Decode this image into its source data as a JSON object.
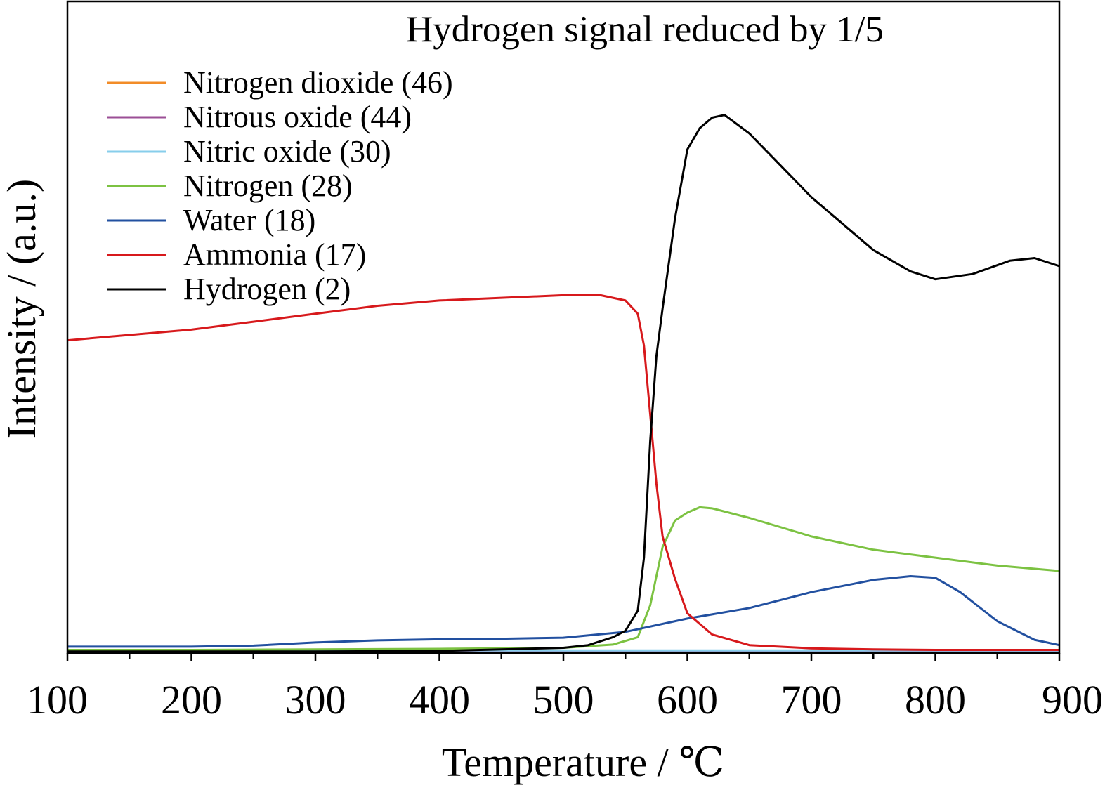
{
  "chart_data": {
    "type": "line",
    "title": "Hydrogen signal reduced by 1/5",
    "xlabel": "Temperature / ℃",
    "ylabel": "Intensity / (a.u.)",
    "xlim": [
      100,
      900
    ],
    "ylim": [
      0,
      100
    ],
    "x_ticks": [
      100,
      200,
      300,
      400,
      500,
      600,
      700,
      800,
      900
    ],
    "x_tick_labels": [
      "100",
      "200",
      "300",
      "400",
      "500",
      "600",
      "700",
      "800",
      "900"
    ],
    "y_ticks_shown": false,
    "grid": false,
    "legend_position": "top-left",
    "series": [
      {
        "name": "Nitrogen dioxide (46)",
        "color": "#f28c28",
        "x": [
          100,
          200,
          300,
          400,
          500,
          600,
          700,
          800,
          900
        ],
        "y": [
          0.3,
          0.3,
          0.3,
          0.3,
          0.3,
          0.3,
          0.3,
          0.3,
          0.3
        ]
      },
      {
        "name": "Nitrous oxide (44)",
        "color": "#9b4f96",
        "x": [
          100,
          200,
          300,
          400,
          500,
          600,
          700,
          800,
          900
        ],
        "y": [
          0.4,
          0.4,
          0.4,
          0.4,
          0.4,
          0.4,
          0.4,
          0.4,
          0.4
        ]
      },
      {
        "name": "Nitric oxide (30)",
        "color": "#87ceeb",
        "x": [
          100,
          200,
          300,
          400,
          500,
          600,
          700,
          800,
          900
        ],
        "y": [
          0.5,
          0.5,
          0.5,
          0.5,
          0.5,
          0.5,
          0.5,
          0.5,
          0.5
        ]
      },
      {
        "name": "Nitrogen (28)",
        "color": "#7cc242",
        "x": [
          100,
          200,
          300,
          400,
          500,
          540,
          560,
          570,
          580,
          590,
          600,
          610,
          620,
          650,
          700,
          750,
          800,
          850,
          900
        ],
        "y": [
          0.6,
          0.6,
          0.7,
          0.8,
          1.0,
          1.6,
          3.0,
          9.0,
          20.0,
          25.0,
          26.5,
          27.5,
          27.3,
          25.5,
          22.0,
          19.5,
          18.0,
          16.5,
          15.5
        ]
      },
      {
        "name": "Water (18)",
        "color": "#2250a0",
        "x": [
          100,
          200,
          250,
          300,
          350,
          400,
          450,
          500,
          550,
          600,
          650,
          700,
          750,
          780,
          800,
          820,
          850,
          880,
          900
        ],
        "y": [
          1.2,
          1.2,
          1.4,
          2.0,
          2.4,
          2.6,
          2.7,
          2.9,
          4.0,
          6.5,
          8.5,
          11.5,
          13.8,
          14.5,
          14.2,
          11.5,
          6.0,
          2.5,
          1.5
        ]
      },
      {
        "name": "Ammonia (17)",
        "color": "#d7191c",
        "x": [
          100,
          150,
          200,
          250,
          300,
          350,
          400,
          450,
          500,
          530,
          550,
          560,
          565,
          570,
          575,
          580,
          590,
          600,
          620,
          650,
          700,
          750,
          800,
          900
        ],
        "y": [
          59.0,
          60.0,
          61.0,
          62.5,
          64.0,
          65.5,
          66.5,
          67.0,
          67.5,
          67.5,
          66.5,
          64.0,
          58.0,
          45.0,
          32.0,
          22.0,
          14.0,
          7.5,
          3.5,
          1.5,
          0.9,
          0.7,
          0.6,
          0.6
        ]
      },
      {
        "name": "Hydrogen (2)",
        "color": "#000000",
        "x": [
          100,
          200,
          300,
          400,
          500,
          520,
          540,
          550,
          560,
          565,
          570,
          575,
          580,
          590,
          600,
          610,
          620,
          630,
          650,
          700,
          750,
          780,
          800,
          830,
          860,
          880,
          900
        ],
        "y": [
          0.3,
          0.3,
          0.3,
          0.4,
          1.0,
          1.5,
          3.0,
          4.2,
          8.0,
          18.0,
          40.0,
          56.0,
          65.0,
          82.0,
          95.0,
          99.0,
          101.0,
          101.5,
          98.0,
          86.0,
          76.0,
          72.0,
          70.5,
          71.5,
          74.0,
          74.5,
          73.0
        ]
      }
    ]
  }
}
